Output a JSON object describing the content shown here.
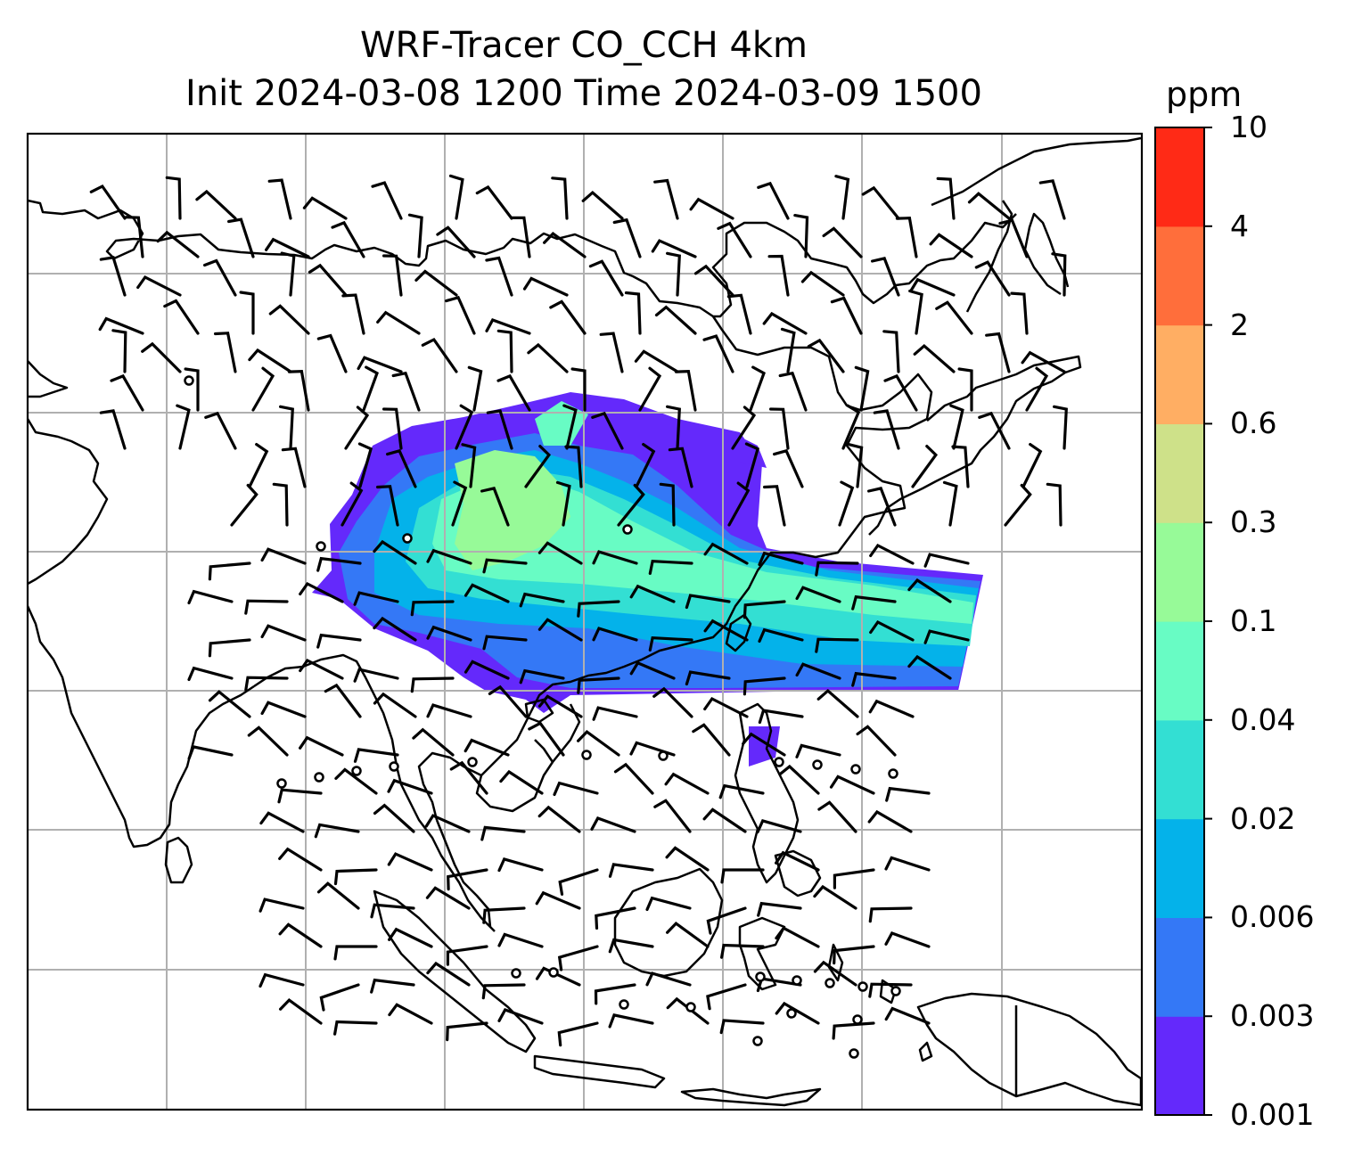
{
  "title": {
    "line1": "WRF-Tracer CO_CCH 4km",
    "line2": "Init 2024-03-08 1200 Time 2024-03-09 1500"
  },
  "colorbar": {
    "unit": "ppm",
    "levels": [
      "0.001",
      "0.003",
      "0.006",
      "0.02",
      "0.04",
      "0.1",
      "0.3",
      "0.6",
      "2",
      "4",
      "10"
    ],
    "colors": [
      "#6429fb",
      "#3478f6",
      "#04b2ea",
      "#33dfd3",
      "#68fcc4",
      "#97fa98",
      "#cee189",
      "#ffae63",
      "#ff6e3b",
      "#ff2a16"
    ]
  },
  "map": {
    "coastline_color": "#000000",
    "gridline_color": "#b0b0b0",
    "barb_color": "#000000"
  }
}
